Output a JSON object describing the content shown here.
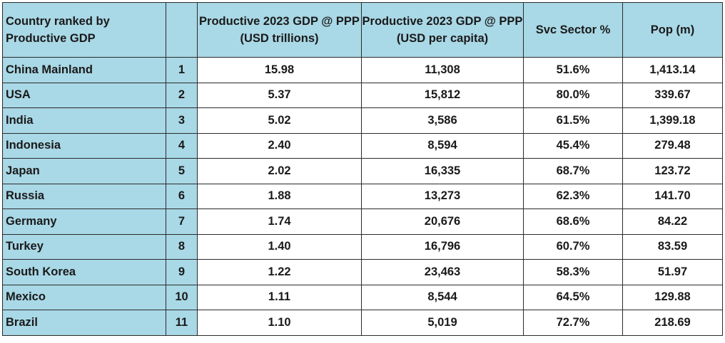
{
  "table": {
    "headers": {
      "country": "Country ranked by Productive GDP",
      "rank": "",
      "gdp_total": "Productive 2023 GDP @ PPP (USD trillions)",
      "gdp_per_capita": "Productive 2023 GDP @ PPP (USD per capita)",
      "svc_sector": "Svc Sector %",
      "pop": "Pop (m)"
    },
    "rows": [
      {
        "country": "China Mainland",
        "rank": "1",
        "gdp_total": "15.98",
        "gdp_per_capita": "11,308",
        "svc_sector": "51.6%",
        "pop": "1,413.14"
      },
      {
        "country": "USA",
        "rank": "2",
        "gdp_total": "5.37",
        "gdp_per_capita": "15,812",
        "svc_sector": "80.0%",
        "pop": "339.67"
      },
      {
        "country": "India",
        "rank": "3",
        "gdp_total": "5.02",
        "gdp_per_capita": "3,586",
        "svc_sector": "61.5%",
        "pop": "1,399.18"
      },
      {
        "country": "Indonesia",
        "rank": "4",
        "gdp_total": "2.40",
        "gdp_per_capita": "8,594",
        "svc_sector": "45.4%",
        "pop": "279.48"
      },
      {
        "country": "Japan",
        "rank": "5",
        "gdp_total": "2.02",
        "gdp_per_capita": "16,335",
        "svc_sector": "68.7%",
        "pop": "123.72"
      },
      {
        "country": "Russia",
        "rank": "6",
        "gdp_total": "1.88",
        "gdp_per_capita": "13,273",
        "svc_sector": "62.3%",
        "pop": "141.70"
      },
      {
        "country": "Germany",
        "rank": "7",
        "gdp_total": "1.74",
        "gdp_per_capita": "20,676",
        "svc_sector": "68.6%",
        "pop": "84.22"
      },
      {
        "country": "Turkey",
        "rank": "8",
        "gdp_total": "1.40",
        "gdp_per_capita": "16,796",
        "svc_sector": "60.7%",
        "pop": "83.59"
      },
      {
        "country": "South Korea",
        "rank": "9",
        "gdp_total": "1.22",
        "gdp_per_capita": "23,463",
        "svc_sector": "58.3%",
        "pop": "51.97"
      },
      {
        "country": "Mexico",
        "rank": "10",
        "gdp_total": "1.11",
        "gdp_per_capita": "8,544",
        "svc_sector": "64.5%",
        "pop": "129.88"
      },
      {
        "country": "Brazil",
        "rank": "11",
        "gdp_total": "1.10",
        "gdp_per_capita": "5,019",
        "svc_sector": "72.7%",
        "pop": "218.69"
      }
    ],
    "colors": {
      "header_fill": "#a9d8e6",
      "label_fill": "#a9d8e6",
      "data_fill": "#ffffff",
      "border": "#2b2b2b"
    }
  }
}
